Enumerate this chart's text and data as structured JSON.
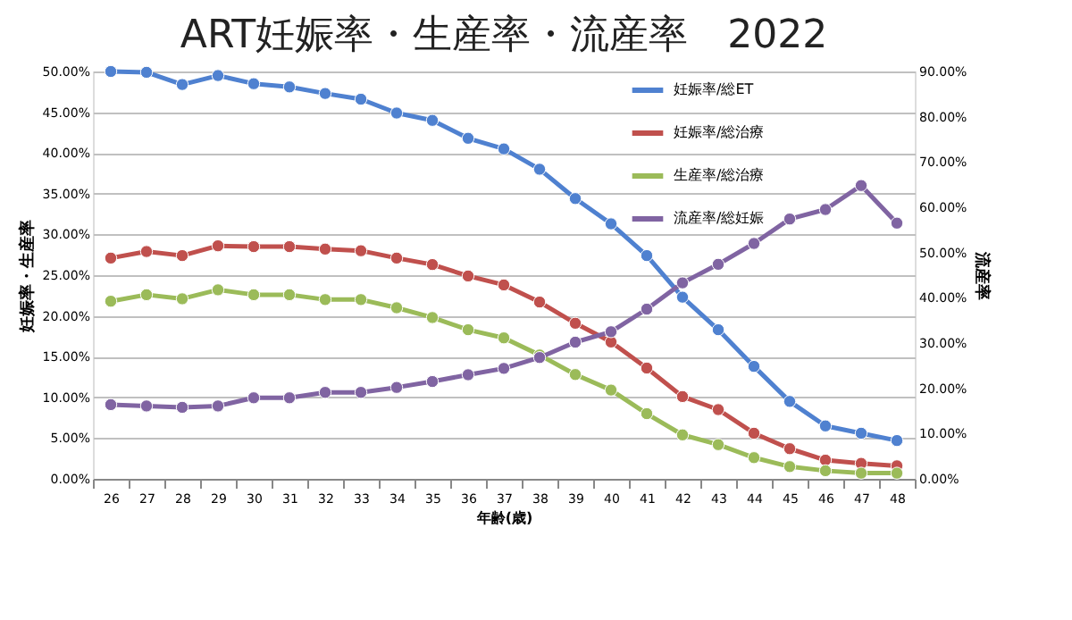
{
  "chart_data": {
    "type": "line",
    "title": "ART妊娠率・生産率・流産率　2022",
    "xlabel": "年齢(歳)",
    "ylabel": "妊娠率・生産率",
    "y2label": "流産率",
    "categories": [
      "26",
      "27",
      "28",
      "29",
      "30",
      "31",
      "32",
      "33",
      "34",
      "35",
      "36",
      "37",
      "38",
      "39",
      "40",
      "41",
      "42",
      "43",
      "44",
      "45",
      "46",
      "47",
      "48"
    ],
    "series": [
      {
        "name": "妊娠率/総ET",
        "color": "#4f81d0",
        "values": [
          50.0,
          49.9,
          48.4,
          49.5,
          48.5,
          48.1,
          47.3,
          46.6,
          44.9,
          44.0,
          41.8,
          40.5,
          38.0,
          34.4,
          31.3,
          27.4,
          22.3,
          18.3,
          13.8,
          9.5,
          6.5,
          5.6,
          4.7
        ]
      },
      {
        "name": "妊娠率/総治療",
        "color": "#c0504d",
        "values": [
          27.1,
          27.9,
          27.4,
          28.6,
          28.5,
          28.5,
          28.2,
          28.0,
          27.1,
          26.3,
          24.9,
          23.8,
          21.7,
          19.1,
          16.8,
          13.6,
          10.1,
          8.5,
          5.6,
          3.7,
          2.3,
          1.9,
          1.6
        ]
      },
      {
        "name": "生産率/総治療",
        "color": "#9bbb59",
        "values": [
          21.8,
          22.6,
          22.1,
          23.2,
          22.6,
          22.6,
          22.0,
          22.0,
          21.0,
          19.8,
          18.3,
          17.3,
          15.2,
          12.8,
          10.9,
          8.0,
          5.4,
          4.2,
          2.6,
          1.5,
          1.0,
          0.7,
          0.7
        ]
      },
      {
        "name": "流産率/総妊娠",
        "color": "#8064a2",
        "axis": "y2",
        "values": [
          16.4,
          16.1,
          15.8,
          16.1,
          17.9,
          17.9,
          19.1,
          19.1,
          20.2,
          21.5,
          23.0,
          24.4,
          26.8,
          30.2,
          32.5,
          37.5,
          43.3,
          47.4,
          52.0,
          57.4,
          59.5,
          64.8,
          56.5
        ]
      }
    ],
    "ylim": [
      0,
      50
    ],
    "yticks": [
      {
        "value": 0,
        "label": "0.00%"
      },
      {
        "value": 5,
        "label": "5.00%"
      },
      {
        "value": 10,
        "label": "10.00%"
      },
      {
        "value": 15,
        "label": "15.00%"
      },
      {
        "value": 20,
        "label": "20.00%"
      },
      {
        "value": 25,
        "label": "25.00%"
      },
      {
        "value": 30,
        "label": "30.00%"
      },
      {
        "value": 35,
        "label": "35.00%"
      },
      {
        "value": 40,
        "label": "40.00%"
      },
      {
        "value": 45,
        "label": "45.00%"
      },
      {
        "value": 50,
        "label": "50.00%"
      }
    ],
    "y2lim": [
      0,
      90
    ],
    "y2ticks": [
      {
        "value": 0,
        "label": "0.00%"
      },
      {
        "value": 10,
        "label": "10.00%"
      },
      {
        "value": 20,
        "label": "20.00%"
      },
      {
        "value": 30,
        "label": "30.00%"
      },
      {
        "value": 40,
        "label": "40.00%"
      },
      {
        "value": 50,
        "label": "50.00%"
      },
      {
        "value": 60,
        "label": "60.00%"
      },
      {
        "value": 70,
        "label": "70.00%"
      },
      {
        "value": 80,
        "label": "80.00%"
      },
      {
        "value": 90,
        "label": "90.00%"
      }
    ],
    "grid": "y",
    "legend": "top right",
    "marker": "circle",
    "line_style": "solid"
  }
}
